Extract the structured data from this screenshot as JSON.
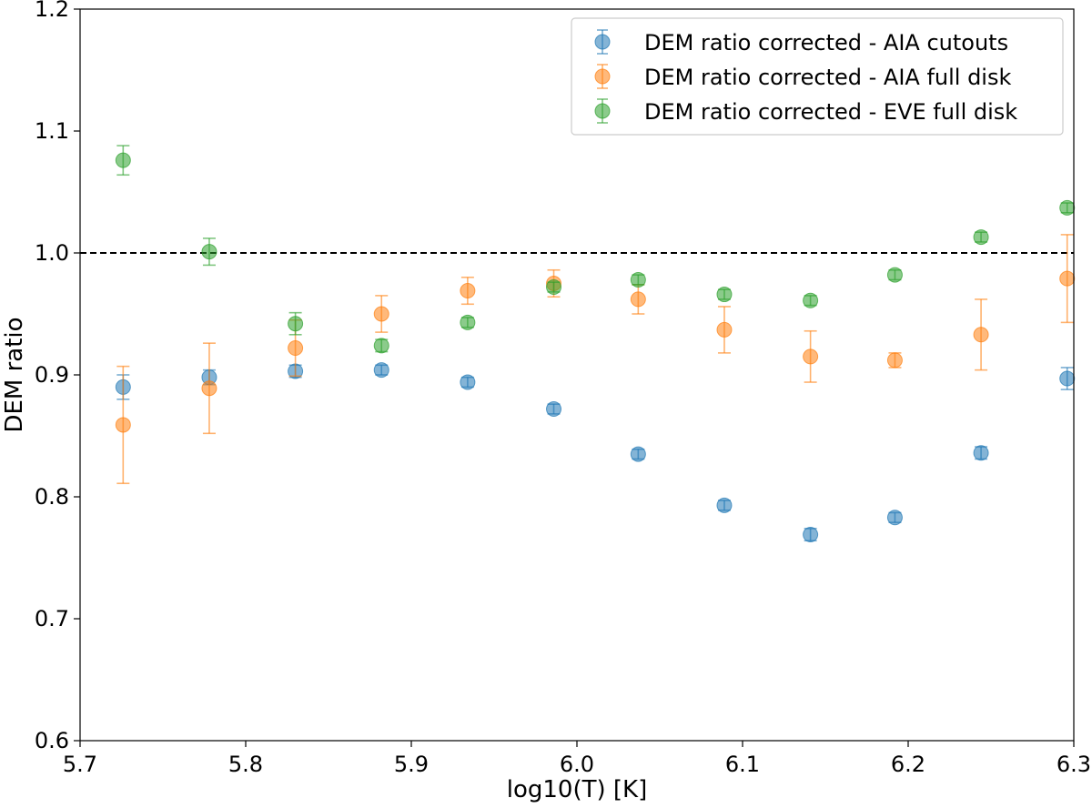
{
  "chart_data": {
    "type": "scatter",
    "title": "",
    "xlabel": "log10(T) [K]",
    "ylabel": "DEM ratio",
    "xlim": [
      5.7,
      6.3
    ],
    "ylim": [
      0.6,
      1.2
    ],
    "xticks": [
      "5.7",
      "5.8",
      "5.9",
      "6.0",
      "6.1",
      "6.2",
      "6.3"
    ],
    "yticks": [
      "0.6",
      "0.7",
      "0.8",
      "0.9",
      "1.0",
      "1.1",
      "1.2"
    ],
    "reference_line": {
      "y": 1.0,
      "style": "dashed",
      "color": "#000000"
    },
    "grid": false,
    "legend_position": "top-right",
    "x": [
      5.726,
      5.778,
      5.83,
      5.882,
      5.934,
      5.986,
      6.037,
      6.089,
      6.141,
      6.192,
      6.244,
      6.296
    ],
    "series": [
      {
        "name": "DEM ratio corrected - AIA cutouts",
        "color": "#1f77b4",
        "values": [
          0.89,
          0.898,
          0.903,
          0.904,
          0.894,
          0.872,
          0.835,
          0.793,
          0.769,
          0.783,
          0.836,
          0.897
        ],
        "errors": [
          0.01,
          0.006,
          0.005,
          0.004,
          0.004,
          0.004,
          0.004,
          0.004,
          0.005,
          0.004,
          0.005,
          0.009
        ]
      },
      {
        "name": "DEM ratio corrected - AIA full disk",
        "color": "#ff7f0e",
        "values": [
          0.859,
          0.889,
          0.922,
          0.95,
          0.969,
          0.975,
          0.962,
          0.937,
          0.915,
          0.912,
          0.933,
          0.979
        ],
        "errors": [
          0.048,
          0.037,
          0.023,
          0.015,
          0.011,
          0.011,
          0.012,
          0.019,
          0.021,
          0.006,
          0.029,
          0.036
        ]
      },
      {
        "name": "DEM ratio corrected - EVE full disk",
        "color": "#2ca02c",
        "values": [
          1.076,
          1.001,
          0.942,
          0.924,
          0.943,
          0.972,
          0.978,
          0.966,
          0.961,
          0.982,
          1.013,
          1.037
        ],
        "errors": [
          0.012,
          0.011,
          0.009,
          0.005,
          0.004,
          0.004,
          0.004,
          0.004,
          0.004,
          0.004,
          0.004,
          0.004
        ]
      }
    ]
  }
}
